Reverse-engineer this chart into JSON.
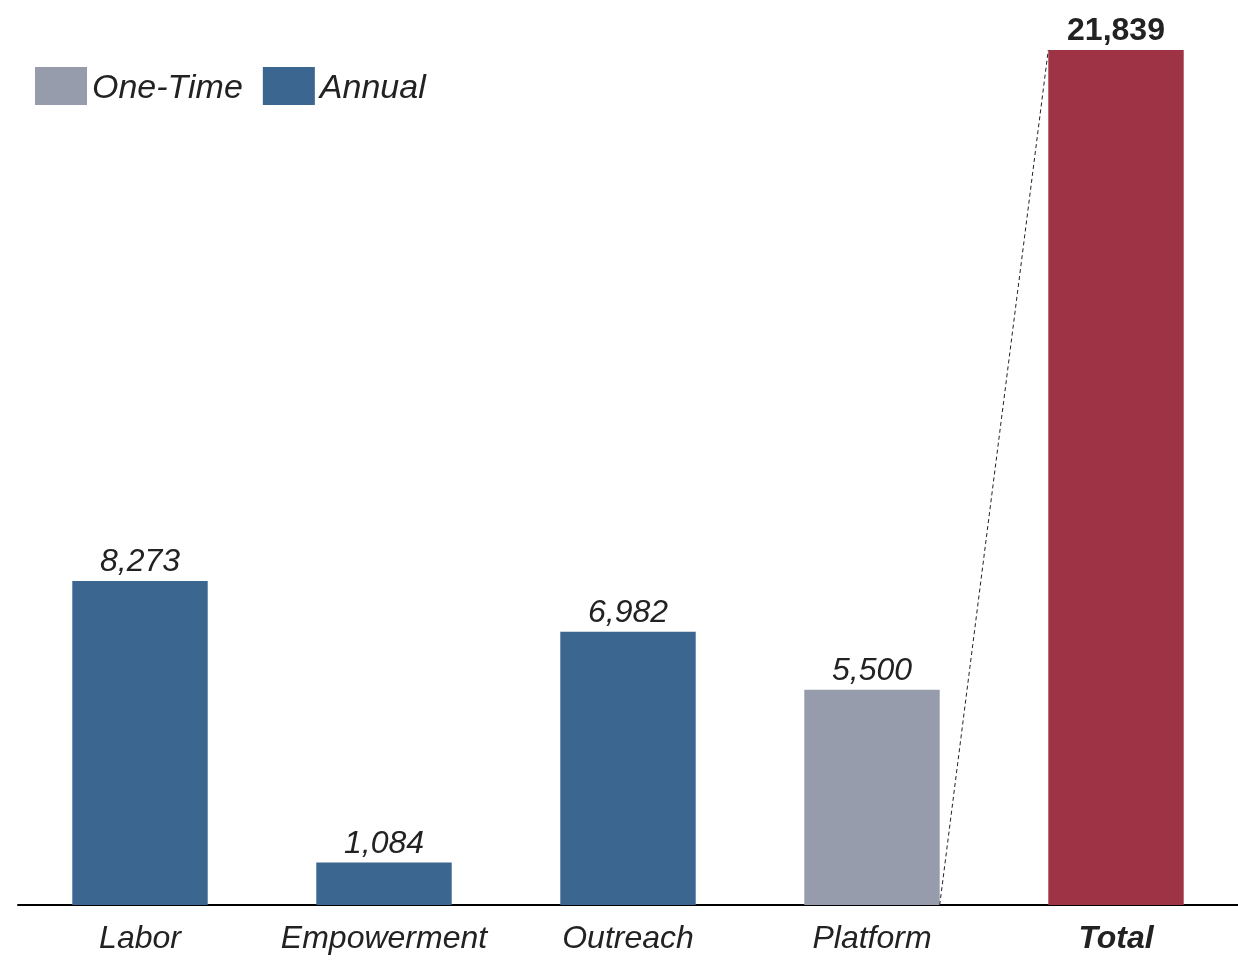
{
  "chart_data": {
    "type": "bar",
    "categories": [
      "Labor",
      "Empowerment",
      "Outreach",
      "Platform",
      "Total"
    ],
    "stacked": true,
    "series": [
      {
        "name": "One-Time",
        "color": "#979cad",
        "values": [
          null,
          null,
          null,
          5500,
          null
        ],
        "value_labels": [
          null,
          null,
          null,
          "5,500",
          null
        ]
      },
      {
        "name": "Annual",
        "color": "#3a6690",
        "values": [
          8273,
          1084,
          6982,
          null,
          null
        ],
        "value_labels": [
          "8,273",
          "1,084",
          "6,982",
          null,
          null
        ]
      },
      {
        "color": "#9e3346",
        "values": [
          null,
          null,
          null,
          null,
          21839
        ],
        "value_labels": [
          null,
          null,
          null,
          null,
          "21,839"
        ]
      }
    ],
    "legend": "top left"
  }
}
